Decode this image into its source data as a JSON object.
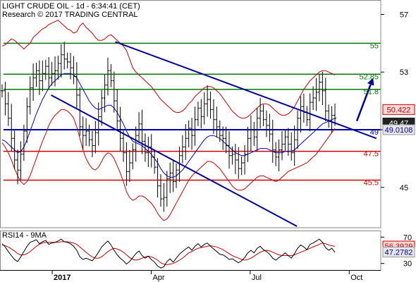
{
  "header": {
    "title": "LIGHT CRUDE OIL - 1d - 6:34:41 (CET)",
    "source": "Research © 2017 TRADING CENTRAL"
  },
  "colors": {
    "price": "#000000",
    "bollinger": "#cc0000",
    "moving_average": "#0000cc",
    "resistance": "#007700",
    "support": "#cc0000",
    "pivot": "#0000aa",
    "trendline": "#000099",
    "rsi": "#000000",
    "rsi_ma": "#cc0000",
    "badge_dark": "#222222",
    "badge_light": "#e6e6e6",
    "badge_red": "#ffd9d9"
  },
  "chart_data": [
    {
      "type": "candlestick",
      "title": "LIGHT CRUDE OIL - 1d - 6:34:41 (CET)",
      "ylim": [
        42.2,
        58
      ],
      "y_ticks": [
        45,
        49,
        53,
        57
      ],
      "x_ticks": [
        {
          "label": "2017",
          "date": "2017-01-02"
        },
        {
          "label": "Apr",
          "date": "2017-04-03"
        },
        {
          "label": "Jul",
          "date": "2017-07-03"
        },
        {
          "label": "Oct",
          "date": "2017-10-02"
        }
      ],
      "x_range": [
        "2016-11-15",
        "2017-10-31"
      ],
      "horizontal_levels": [
        {
          "label": "55",
          "value": 55,
          "role": "resistance"
        },
        {
          "label": "52.85",
          "value": 52.85,
          "role": "resistance"
        },
        {
          "label": "51.8",
          "value": 51.8,
          "role": "resistance"
        },
        {
          "label": "49",
          "value": 49,
          "role": "pivot"
        },
        {
          "label": "47.5",
          "value": 47.5,
          "role": "support"
        },
        {
          "label": "45.5",
          "value": 45.5,
          "role": "support"
        }
      ],
      "trendlines": [
        {
          "start": [
            "2017-03-01",
            55.1
          ],
          "end": [
            "2017-10-27",
            48.4
          ]
        },
        {
          "start": [
            "2017-01-01",
            51.4
          ],
          "end": [
            "2017-08-15",
            42.3
          ]
        }
      ],
      "forecast_arrow": {
        "start": [
          "2017-10-09",
          49.6
        ],
        "end": [
          "2017-10-24",
          52.6
        ]
      },
      "price_badges": [
        {
          "label": "50.422",
          "value": 50.4,
          "style": "red"
        },
        {
          "label": "49.47",
          "value": 49.47,
          "style": "dark"
        },
        {
          "label": "49.0108",
          "value": 49.0,
          "style": "light"
        }
      ],
      "series": [
        {
          "name": "Price",
          "close": [
            51.7,
            50.8,
            49.8,
            48.4,
            46.9,
            46.2,
            47.3,
            48.9,
            50.6,
            51.9,
            52.6,
            53.1,
            52.4,
            52.9,
            53.4,
            52.6,
            52.9,
            53.1,
            53.6,
            54.2,
            53.9,
            53.7,
            53.3,
            52.7,
            51.4,
            49.2,
            48.6,
            48.9,
            48.3,
            47.9,
            48.8,
            49.9,
            51.2,
            52.1,
            53.1,
            52.4,
            51.0,
            49.6,
            48.4,
            47.4,
            46.1,
            46.7,
            47.6,
            48.6,
            49.4,
            48.2,
            47.4,
            47.8,
            47.1,
            46.4,
            45.1,
            44.2,
            44.3,
            45.6,
            46.0,
            45.4,
            46.2,
            47.2,
            47.8,
            48.4,
            49.1,
            48.6,
            49.7,
            50.5,
            49.9,
            50.8,
            51.1,
            50.4,
            49.7,
            49.2,
            48.6,
            48.4,
            47.9,
            47.2,
            47.3,
            46.9,
            46.3,
            46.7,
            47.3,
            48.4,
            49.0,
            48.5,
            49.8,
            50.3,
            49.7,
            49.3,
            48.7,
            47.6,
            47.1,
            47.6,
            48.0,
            48.5,
            48.0,
            47.4,
            48.3,
            49.8,
            50.6,
            50.2,
            49.7,
            50.9,
            51.2,
            51.6,
            52.3,
            51.7,
            50.3,
            49.6,
            50.0,
            49.8
          ]
        },
        {
          "name": "Bollinger Upper",
          "close": [
            54.8,
            54.9,
            55.1,
            55.3,
            55.2,
            55.0,
            54.8,
            54.6,
            54.8,
            55.0,
            55.4,
            55.6,
            55.8,
            56.0,
            56.1,
            56.3,
            56.4,
            56.5,
            56.6,
            56.4,
            56.2,
            56.0,
            55.9,
            55.7,
            55.8,
            56.2,
            56.4,
            56.1,
            55.9,
            55.7,
            55.4,
            55.2,
            55.2,
            55.3,
            55.5,
            55.6,
            55.4,
            55.2,
            55.0,
            54.8,
            54.5,
            53.9,
            53.3,
            53.0,
            52.8,
            52.6,
            52.4,
            52.2,
            52.0,
            51.7,
            51.4,
            51.1,
            50.9,
            50.7,
            50.5,
            50.3,
            50.2,
            50.2,
            50.3,
            50.5,
            50.8,
            51.0,
            51.3,
            51.5,
            51.7,
            51.9,
            52.0,
            52.0,
            51.9,
            51.7,
            51.5,
            51.2,
            50.9,
            50.6,
            50.3,
            50.1,
            49.9,
            49.8,
            49.8,
            49.9,
            50.1,
            50.3,
            50.5,
            50.7,
            50.8,
            50.8,
            50.7,
            50.5,
            50.3,
            50.1,
            50.0,
            50.0,
            50.1,
            50.3,
            50.6,
            51.0,
            51.4,
            51.8,
            52.1,
            52.4,
            52.6,
            52.8,
            53.0,
            53.1,
            53.1,
            53.0,
            52.9,
            52.8
          ]
        },
        {
          "name": "Bollinger Lower",
          "close": [
            48.1,
            47.8,
            47.4,
            46.9,
            46.3,
            45.8,
            45.4,
            45.2,
            45.4,
            45.8,
            46.4,
            47.0,
            47.6,
            48.2,
            48.7,
            49.3,
            49.7,
            50.0,
            50.2,
            50.4,
            50.4,
            50.3,
            50.1,
            49.8,
            49.2,
            48.4,
            47.6,
            47.0,
            46.6,
            46.3,
            46.2,
            46.4,
            46.8,
            47.2,
            47.4,
            47.3,
            47.0,
            46.5,
            46.0,
            45.4,
            44.7,
            44.3,
            44.1,
            44.2,
            44.4,
            44.4,
            44.3,
            44.1,
            43.9,
            43.6,
            43.2,
            42.9,
            42.7,
            42.8,
            43.1,
            43.5,
            43.9,
            44.3,
            44.7,
            45.1,
            45.5,
            45.8,
            46.0,
            46.2,
            46.4,
            46.6,
            46.8,
            46.8,
            46.7,
            46.5,
            46.3,
            46.0,
            45.7,
            45.4,
            45.1,
            44.9,
            44.8,
            44.8,
            44.9,
            45.1,
            45.3,
            45.5,
            45.7,
            45.8,
            45.8,
            45.7,
            45.6,
            45.5,
            45.4,
            45.5,
            45.7,
            45.9,
            46.1,
            46.2,
            46.3,
            46.4,
            46.5,
            46.6,
            46.7,
            46.9,
            47.1,
            47.3,
            47.6,
            47.9,
            48.2,
            48.5,
            48.8,
            49.1
          ]
        },
        {
          "name": "Moving Average",
          "close": [
            48.3,
            48.2,
            48.0,
            47.8,
            47.6,
            47.4,
            47.5,
            47.8,
            48.3,
            48.9,
            49.5,
            50.1,
            50.6,
            51.1,
            51.5,
            51.9,
            52.2,
            52.4,
            52.6,
            52.8,
            52.9,
            52.9,
            52.9,
            52.8,
            52.6,
            52.2,
            51.8,
            51.4,
            51.0,
            50.7,
            50.5,
            50.4,
            50.5,
            50.6,
            50.7,
            50.7,
            50.5,
            50.2,
            49.8,
            49.4,
            48.9,
            48.5,
            48.2,
            48.1,
            48.0,
            47.9,
            47.7,
            47.5,
            47.3,
            47.0,
            46.7,
            46.3,
            46.0,
            45.8,
            45.7,
            45.7,
            45.8,
            46.0,
            46.2,
            46.5,
            46.8,
            47.1,
            47.4,
            47.7,
            48.0,
            48.3,
            48.5,
            48.6,
            48.6,
            48.5,
            48.4,
            48.2,
            48.0,
            47.8,
            47.6,
            47.4,
            47.3,
            47.2,
            47.2,
            47.3,
            47.4,
            47.5,
            47.6,
            47.7,
            47.7,
            47.7,
            47.6,
            47.5,
            47.4,
            47.4,
            47.4,
            47.5,
            47.5,
            47.5,
            47.6,
            47.8,
            48.0,
            48.2,
            48.4,
            48.6,
            48.8,
            49.0,
            49.2,
            49.4,
            49.5,
            49.6,
            49.7,
            49.8
          ]
        }
      ]
    },
    {
      "type": "line",
      "title": "RSI14 - 9MA",
      "ylim": [
        20,
        80
      ],
      "y_ticks": [
        30,
        70
      ],
      "price_badges": [
        {
          "label": "56.3929",
          "value": 56.39,
          "style": "red"
        },
        {
          "label": "47.2782",
          "value": 47.28,
          "style": "light"
        }
      ],
      "series": [
        {
          "name": "RSI14",
          "values": [
            60,
            55,
            48,
            42,
            36,
            33,
            40,
            48,
            56,
            62,
            64,
            66,
            60,
            63,
            65,
            59,
            61,
            62,
            64,
            67,
            63,
            62,
            60,
            56,
            50,
            40,
            36,
            38,
            36,
            34,
            40,
            47,
            55,
            60,
            64,
            58,
            50,
            43,
            38,
            34,
            29,
            33,
            39,
            45,
            49,
            42,
            38,
            41,
            36,
            32,
            26,
            23,
            25,
            33,
            37,
            32,
            38,
            44,
            48,
            52,
            55,
            50,
            56,
            60,
            55,
            59,
            61,
            56,
            52,
            48,
            44,
            43,
            40,
            36,
            37,
            34,
            31,
            34,
            39,
            46,
            50,
            46,
            53,
            56,
            51,
            48,
            44,
            38,
            35,
            39,
            42,
            46,
            42,
            38,
            45,
            53,
            58,
            55,
            51,
            59,
            61,
            64,
            67,
            62,
            54,
            50,
            53,
            47
          ]
        },
        {
          "name": "9MA",
          "values": [
            58,
            57,
            55,
            52,
            49,
            45,
            43,
            43,
            45,
            48,
            52,
            56,
            59,
            61,
            62,
            62,
            62,
            62,
            62,
            63,
            63,
            63,
            62,
            61,
            59,
            55,
            51,
            47,
            43,
            40,
            38,
            38,
            40,
            44,
            48,
            51,
            53,
            52,
            50,
            47,
            43,
            39,
            36,
            35,
            36,
            38,
            40,
            41,
            40,
            38,
            35,
            31,
            29,
            28,
            29,
            30,
            32,
            35,
            38,
            42,
            46,
            48,
            51,
            53,
            54,
            55,
            56,
            57,
            56,
            55,
            53,
            51,
            48,
            45,
            42,
            40,
            38,
            36,
            35,
            36,
            38,
            41,
            44,
            47,
            49,
            50,
            49,
            47,
            45,
            43,
            42,
            42,
            42,
            42,
            43,
            45,
            47,
            49,
            51,
            53,
            55,
            57,
            59,
            61,
            60,
            58,
            57,
            56
          ]
        }
      ]
    }
  ]
}
